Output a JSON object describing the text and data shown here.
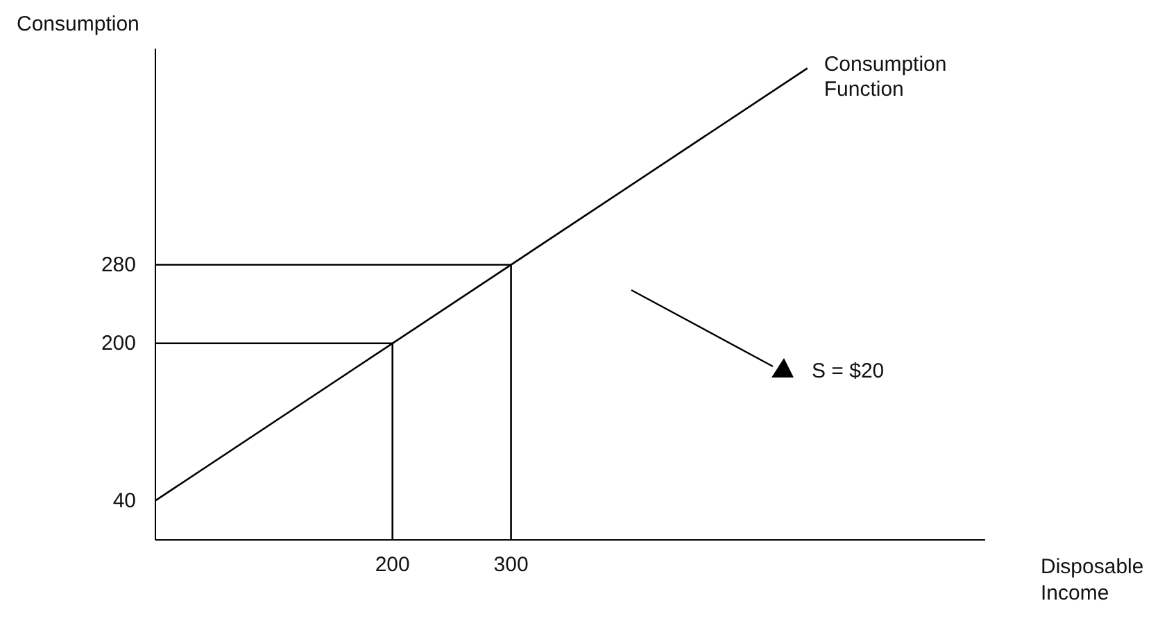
{
  "chart_data": {
    "type": "line",
    "xlabel": "Disposable Income",
    "ylabel": "Consumption",
    "xlim": [
      0,
      700
    ],
    "ylim": [
      0,
      500
    ],
    "xticks": [
      200,
      300
    ],
    "yticks": [
      40,
      200,
      280
    ],
    "grid": false,
    "legend": false,
    "marker": "none",
    "line_style": "solid",
    "series": [
      {
        "name": "Consumption Function",
        "color": "#000000",
        "x": [
          0,
          550
        ],
        "values": [
          40,
          480
        ]
      },
      {
        "color": "#000000",
        "x": [
          0,
          200,
          200
        ],
        "values": [
          200,
          200,
          0
        ]
      },
      {
        "color": "#000000",
        "x": [
          0,
          300,
          300
        ],
        "values": [
          280,
          280,
          0
        ]
      }
    ],
    "annotations": [
      "S = $20"
    ]
  }
}
